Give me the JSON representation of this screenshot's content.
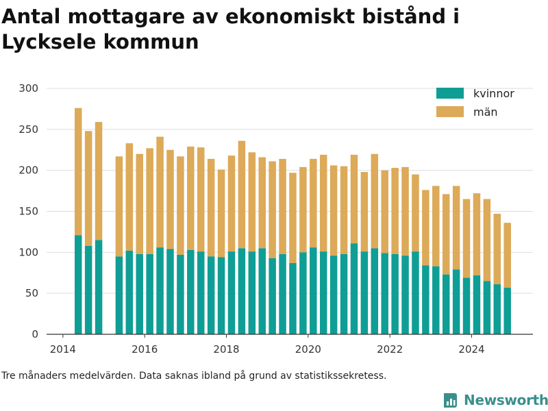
{
  "title": "Antal mottagare av ekonomiskt bistånd i Lycksele kommun",
  "footnote": "Tre månaders medelvärden. Data saknas ibland på grund av statistikssekretess.",
  "brand": {
    "name": "Newsworthy",
    "icon": "newsworthy-logo-icon"
  },
  "colors": {
    "kvinnor": "#0f9e95",
    "man": "#dcaa58",
    "grid": "#dddddd",
    "axis": "#333333",
    "brand": "#3a8f8c"
  },
  "chart_data": {
    "type": "bar",
    "stacked": true,
    "title": "Antal mottagare av ekonomiskt bistånd i Lycksele kommun",
    "xlabel": "",
    "ylabel": "",
    "ylim": [
      0,
      300
    ],
    "y_ticks": [
      0,
      50,
      100,
      150,
      200,
      250,
      300
    ],
    "x_range": [
      2013.6,
      2025.5
    ],
    "x_ticks": [
      2014,
      2016,
      2018,
      2020,
      2022,
      2024
    ],
    "grid": true,
    "legend_position": "top-right",
    "x": [
      2014.375,
      2014.625,
      2014.875,
      2015.375,
      2015.625,
      2015.875,
      2016.125,
      2016.375,
      2016.625,
      2016.875,
      2017.125,
      2017.375,
      2017.625,
      2017.875,
      2018.125,
      2018.375,
      2018.625,
      2018.875,
      2019.125,
      2019.375,
      2019.625,
      2019.875,
      2020.125,
      2020.375,
      2020.625,
      2020.875,
      2021.125,
      2021.375,
      2021.625,
      2021.875,
      2022.125,
      2022.375,
      2022.625,
      2022.875,
      2023.125,
      2023.375,
      2023.625,
      2023.875,
      2024.125,
      2024.375,
      2024.625,
      2024.875
    ],
    "series": [
      {
        "name": "kvinnor",
        "color": "#0f9e95",
        "values": [
          121,
          108,
          115,
          95,
          102,
          98,
          98,
          106,
          104,
          97,
          103,
          101,
          95,
          94,
          101,
          105,
          101,
          105,
          93,
          98,
          87,
          100,
          106,
          101,
          96,
          98,
          111,
          101,
          105,
          99,
          98,
          96,
          101,
          84,
          83,
          73,
          79,
          69,
          72,
          65,
          61,
          57
        ]
      },
      {
        "name": "män",
        "color": "#dcaa58",
        "values": [
          155,
          140,
          144,
          122,
          131,
          122,
          129,
          135,
          121,
          120,
          126,
          127,
          119,
          107,
          117,
          131,
          121,
          111,
          118,
          116,
          110,
          104,
          108,
          118,
          110,
          107,
          108,
          97,
          115,
          101,
          105,
          108,
          94,
          92,
          98,
          98,
          102,
          96,
          100,
          100,
          86,
          79
        ]
      }
    ]
  }
}
